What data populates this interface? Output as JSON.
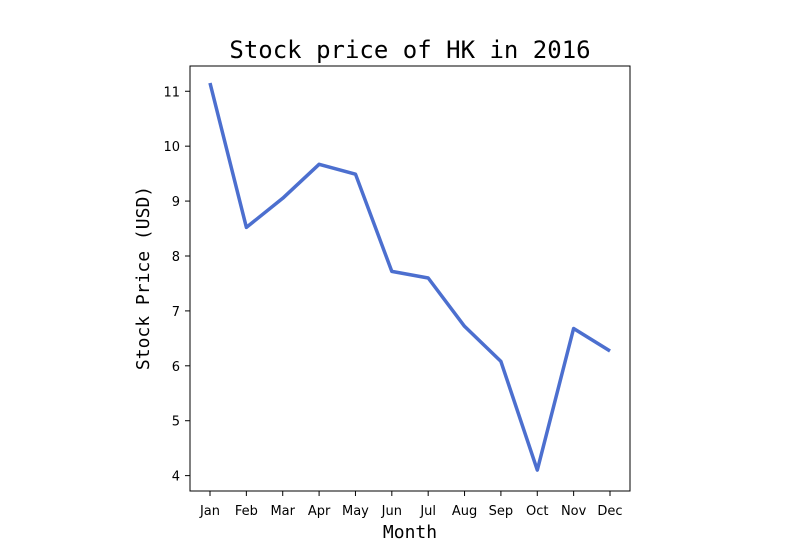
{
  "chart_data": {
    "type": "line",
    "title": "Stock price of HK in 2016",
    "xlabel": "Month",
    "ylabel": "Stock Price (USD)",
    "categories": [
      "Jan",
      "Feb",
      "Mar",
      "Apr",
      "May",
      "Jun",
      "Jul",
      "Aug",
      "Sep",
      "Oct",
      "Nov",
      "Dec"
    ],
    "series": [
      {
        "values": [
          11.15,
          8.52,
          9.05,
          9.67,
          9.49,
          7.72,
          7.6,
          6.72,
          6.08,
          4.1,
          6.68,
          6.27
        ],
        "color": "#4c6fcf"
      }
    ],
    "yticks": [
      4,
      5,
      6,
      7,
      8,
      9,
      10,
      11
    ],
    "ylim": [
      3.72,
      11.46
    ],
    "grid": false,
    "legend": "none"
  }
}
